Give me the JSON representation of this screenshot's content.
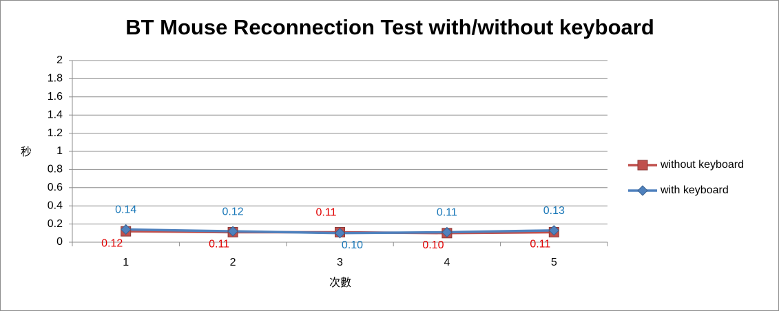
{
  "chart_data": {
    "type": "line",
    "title": "BT Mouse Reconnection Test with/without keyboard",
    "ylabel": "秒",
    "xlabel": "次數",
    "categories": [
      "1",
      "2",
      "3",
      "4",
      "5"
    ],
    "series": [
      {
        "name": "without keyboard",
        "color": "#c0504d",
        "marker": "square",
        "values": [
          0.12,
          0.11,
          0.11,
          0.1,
          0.11
        ],
        "value_labels": [
          "0.12",
          "0.11",
          "0.11",
          "0.10",
          "0.11"
        ]
      },
      {
        "name": "with keyboard",
        "color": "#4f81bd",
        "marker": "diamond",
        "values": [
          0.14,
          0.12,
          0.1,
          0.11,
          0.13
        ],
        "value_labels": [
          "0.14",
          "0.12",
          "0.10",
          "0.11",
          "0.13"
        ]
      }
    ],
    "ylim": [
      0,
      2
    ],
    "yticks": [
      0,
      0.2,
      0.4,
      0.6,
      0.8,
      1,
      1.2,
      1.4,
      1.6,
      1.8,
      2
    ],
    "grid": true,
    "legend": "right"
  }
}
